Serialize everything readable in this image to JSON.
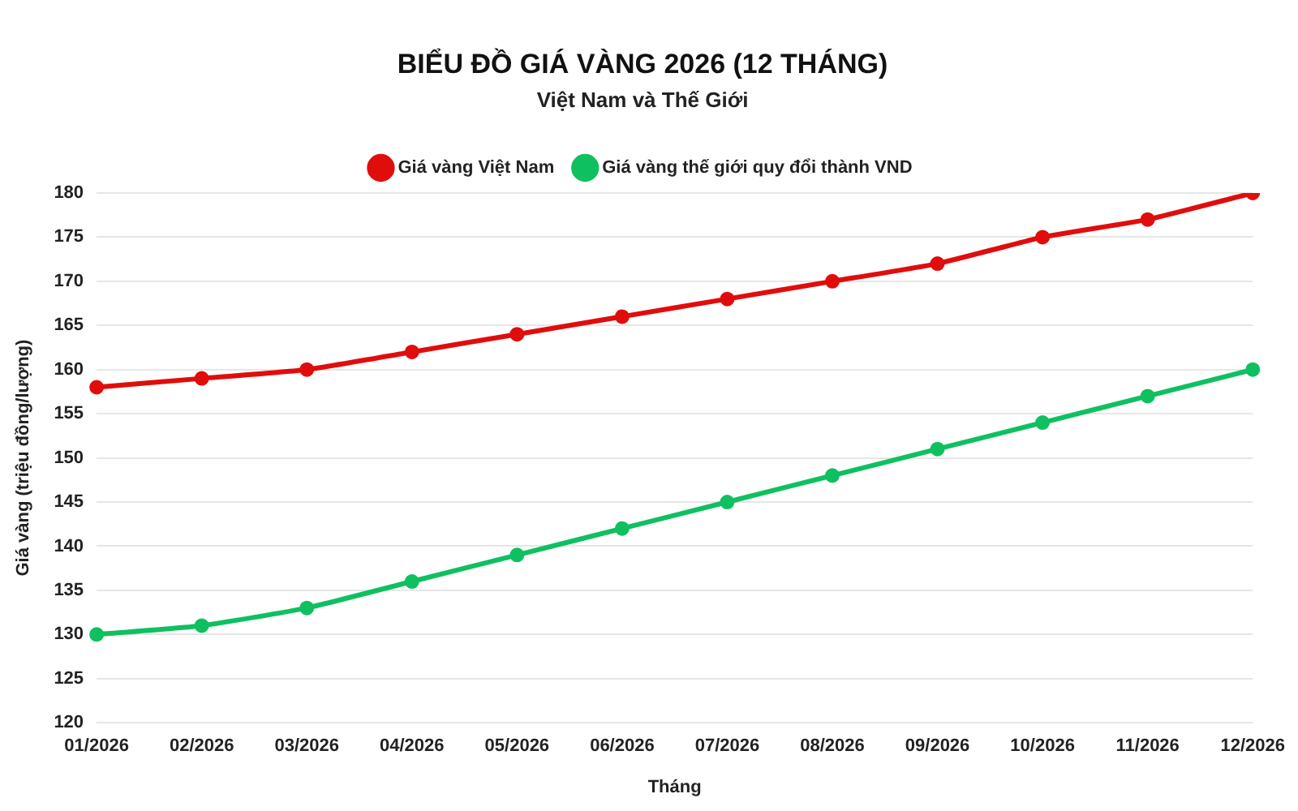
{
  "chart_data": {
    "type": "line",
    "title": "BIỂU ĐỒ GIÁ VÀNG 2026 (12 THÁNG)",
    "subtitle": "Việt Nam và Thế Giới",
    "xlabel": "Tháng",
    "ylabel": "Giá vàng (triệu đồng/lượng)",
    "categories": [
      "01/2026",
      "02/2026",
      "03/2026",
      "04/2026",
      "05/2026",
      "06/2026",
      "07/2026",
      "08/2026",
      "09/2026",
      "10/2026",
      "11/2026",
      "12/2026"
    ],
    "series": [
      {
        "name": "Giá vàng Việt Nam",
        "color": "#e00d0d",
        "values": [
          158,
          159,
          160,
          162,
          164,
          166,
          168,
          170,
          172,
          175,
          177,
          180
        ]
      },
      {
        "name": "Giá vàng thế giới quy đổi thành VND",
        "color": "#0fc060",
        "values": [
          130,
          131,
          133,
          136,
          139,
          142,
          145,
          148,
          151,
          154,
          157,
          160
        ]
      }
    ],
    "ylim": [
      120,
      180
    ],
    "yticks": [
      120,
      125,
      130,
      135,
      140,
      145,
      150,
      155,
      160,
      165,
      170,
      175,
      180
    ],
    "grid": "y",
    "legend": "top",
    "marker": "circle",
    "line_style": "solid"
  }
}
